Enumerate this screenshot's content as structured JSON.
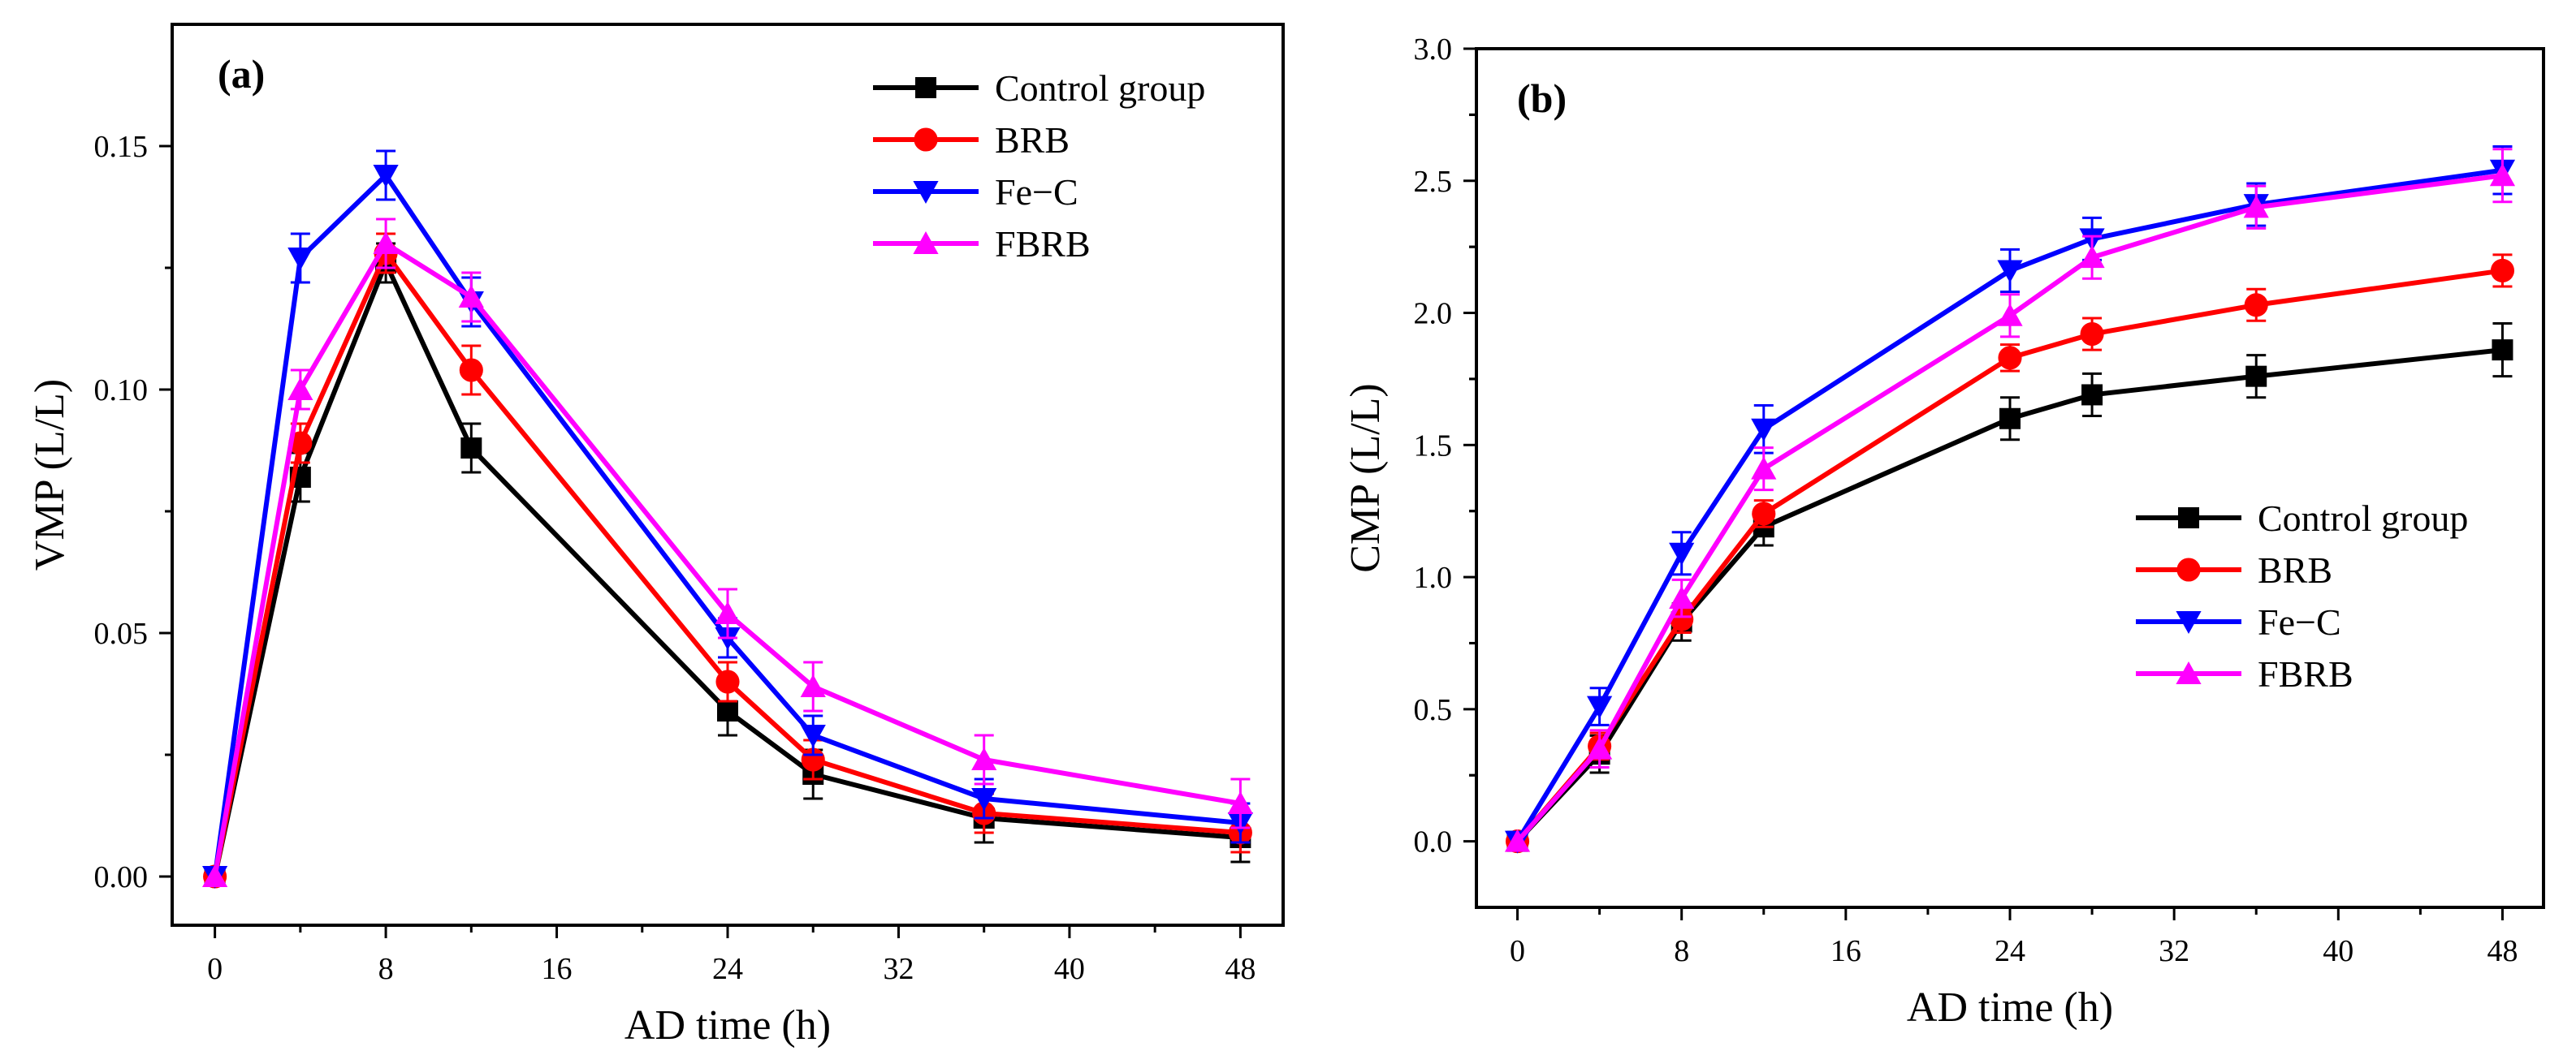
{
  "chart_data": [
    {
      "id": "a",
      "type": "line",
      "panel_label": "(a)",
      "xlabel": "AD time (h)",
      "ylabel": "VMP (L/L)",
      "xlim": [
        -2,
        50
      ],
      "ylim": [
        -0.01,
        0.175
      ],
      "xticks": [
        0,
        8,
        16,
        24,
        32,
        40,
        48
      ],
      "xtick_labels": [
        "0",
        "8",
        "16",
        "24",
        "32",
        "40",
        "48"
      ],
      "yticks": [
        0,
        0.05,
        0.1,
        0.15
      ],
      "ytick_labels": [
        "0.00",
        "0.05",
        "0.10",
        "0.15"
      ],
      "legend_position": "top-right",
      "x": [
        0,
        4,
        8,
        12,
        24,
        28,
        36,
        48
      ],
      "series": [
        {
          "name": "Control group",
          "color": "#000000",
          "marker": "square",
          "values": [
            0,
            0.082,
            0.126,
            0.088,
            0.034,
            0.021,
            0.012,
            0.008
          ],
          "errors": [
            0,
            0.005,
            0.004,
            0.005,
            0.005,
            0.005,
            0.005,
            0.005
          ]
        },
        {
          "name": "BRB",
          "color": "#ff0000",
          "marker": "circle",
          "values": [
            0,
            0.089,
            0.128,
            0.104,
            0.04,
            0.024,
            0.013,
            0.009
          ],
          "errors": [
            0,
            0.004,
            0.004,
            0.005,
            0.004,
            0.004,
            0.004,
            0.004
          ]
        },
        {
          "name": "Fe−C",
          "color": "#0000ff",
          "marker": "triangle-down",
          "values": [
            0,
            0.127,
            0.144,
            0.118,
            0.049,
            0.029,
            0.016,
            0.011
          ],
          "errors": [
            0,
            0.005,
            0.005,
            0.005,
            0.004,
            0.004,
            0.004,
            0.004
          ]
        },
        {
          "name": "FBRB",
          "color": "#ff00ff",
          "marker": "triangle-up",
          "values": [
            0,
            0.1,
            0.13,
            0.119,
            0.054,
            0.039,
            0.024,
            0.015
          ],
          "errors": [
            0,
            0.004,
            0.005,
            0.005,
            0.005,
            0.005,
            0.005,
            0.005
          ]
        }
      ]
    },
    {
      "id": "b",
      "type": "line",
      "panel_label": "(b)",
      "xlabel": "AD time (h)",
      "ylabel": "CMP (L/L)",
      "xlim": [
        -2,
        50
      ],
      "ylim": [
        -0.25,
        3.0
      ],
      "xticks": [
        0,
        8,
        16,
        24,
        32,
        40,
        48
      ],
      "xtick_labels": [
        "0",
        "8",
        "16",
        "24",
        "32",
        "40",
        "48"
      ],
      "yticks": [
        0,
        0.5,
        1.0,
        1.5,
        2.0,
        2.5,
        3.0
      ],
      "ytick_labels": [
        "0.0",
        "0.5",
        "1.0",
        "1.5",
        "2.0",
        "2.5",
        "3.0"
      ],
      "legend_position": "center-right",
      "x": [
        0,
        4,
        8,
        12,
        24,
        28,
        36,
        48
      ],
      "series": [
        {
          "name": "Control group",
          "color": "#000000",
          "marker": "square",
          "values": [
            0,
            0.33,
            0.83,
            1.19,
            1.6,
            1.69,
            1.76,
            1.86
          ],
          "errors": [
            0,
            0.07,
            0.07,
            0.07,
            0.08,
            0.08,
            0.08,
            0.1
          ]
        },
        {
          "name": "BRB",
          "color": "#ff0000",
          "marker": "circle",
          "values": [
            0,
            0.36,
            0.84,
            1.24,
            1.83,
            1.92,
            2.03,
            2.16
          ],
          "errors": [
            0,
            0.05,
            0.05,
            0.05,
            0.05,
            0.06,
            0.06,
            0.06
          ]
        },
        {
          "name": "Fe−C",
          "color": "#0000ff",
          "marker": "triangle-down",
          "values": [
            0,
            0.51,
            1.09,
            1.56,
            2.16,
            2.28,
            2.41,
            2.54
          ],
          "errors": [
            0,
            0.07,
            0.08,
            0.09,
            0.08,
            0.08,
            0.08,
            0.09
          ]
        },
        {
          "name": "FBRB",
          "color": "#ff00ff",
          "marker": "triangle-up",
          "values": [
            0,
            0.35,
            0.92,
            1.41,
            1.99,
            2.21,
            2.4,
            2.52
          ],
          "errors": [
            0,
            0.07,
            0.07,
            0.08,
            0.08,
            0.08,
            0.08,
            0.1
          ]
        }
      ]
    }
  ]
}
